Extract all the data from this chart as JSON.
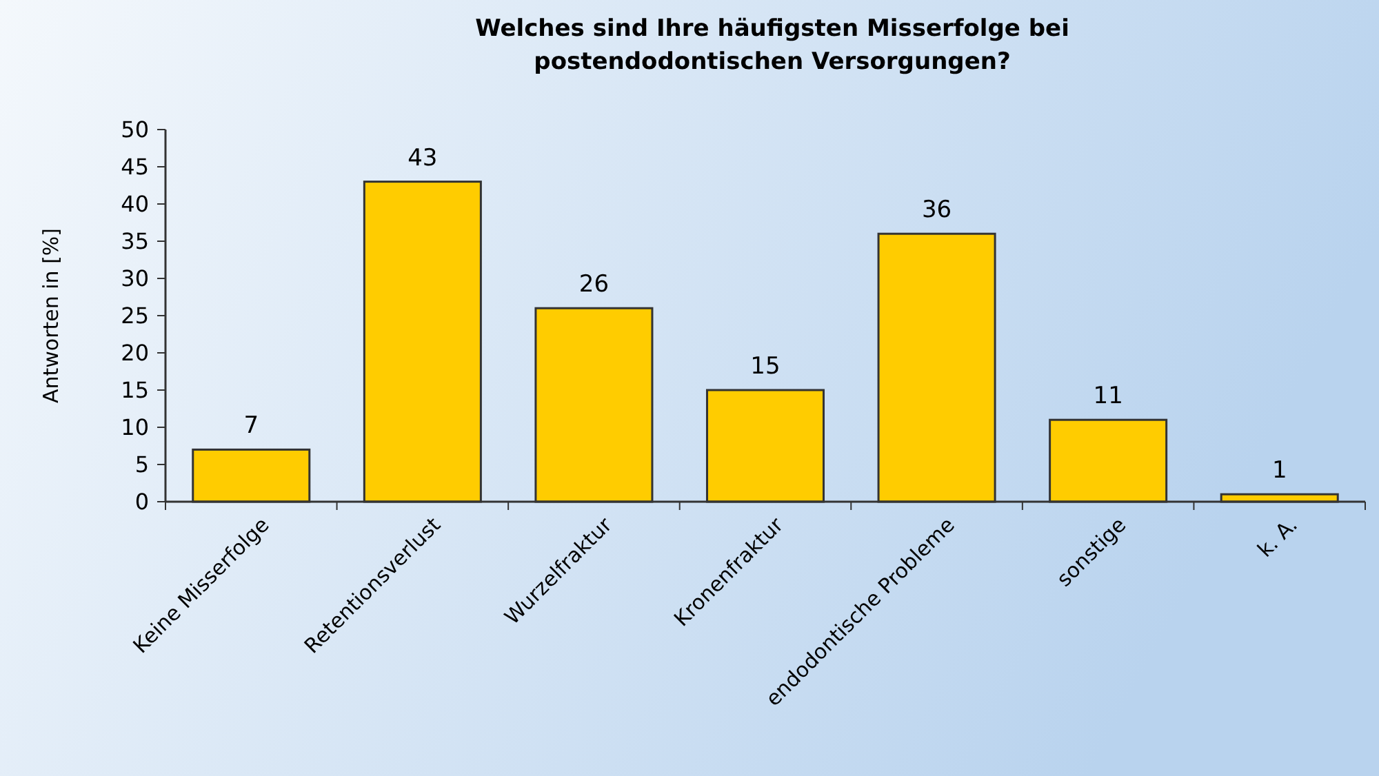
{
  "chart_data": {
    "type": "bar",
    "title": "Welches sind Ihre häufigsten Misserfolge bei postendodontischen Versorgungen?",
    "ylabel": "Antworten in [%]",
    "categories": [
      "Keine Misserfolge",
      "Retentionsverlust",
      "Wurzelfraktur",
      "Kronenfraktur",
      "endodontische Probleme",
      "sonstige",
      "k. A."
    ],
    "values": [
      7,
      43,
      26,
      15,
      36,
      11,
      1
    ],
    "color": "#ffcc00",
    "ylim": [
      0,
      50
    ],
    "yticks": [
      0,
      5,
      10,
      15,
      20,
      25,
      30,
      35,
      40,
      45,
      50
    ],
    "grid": false,
    "data_labels": true
  }
}
